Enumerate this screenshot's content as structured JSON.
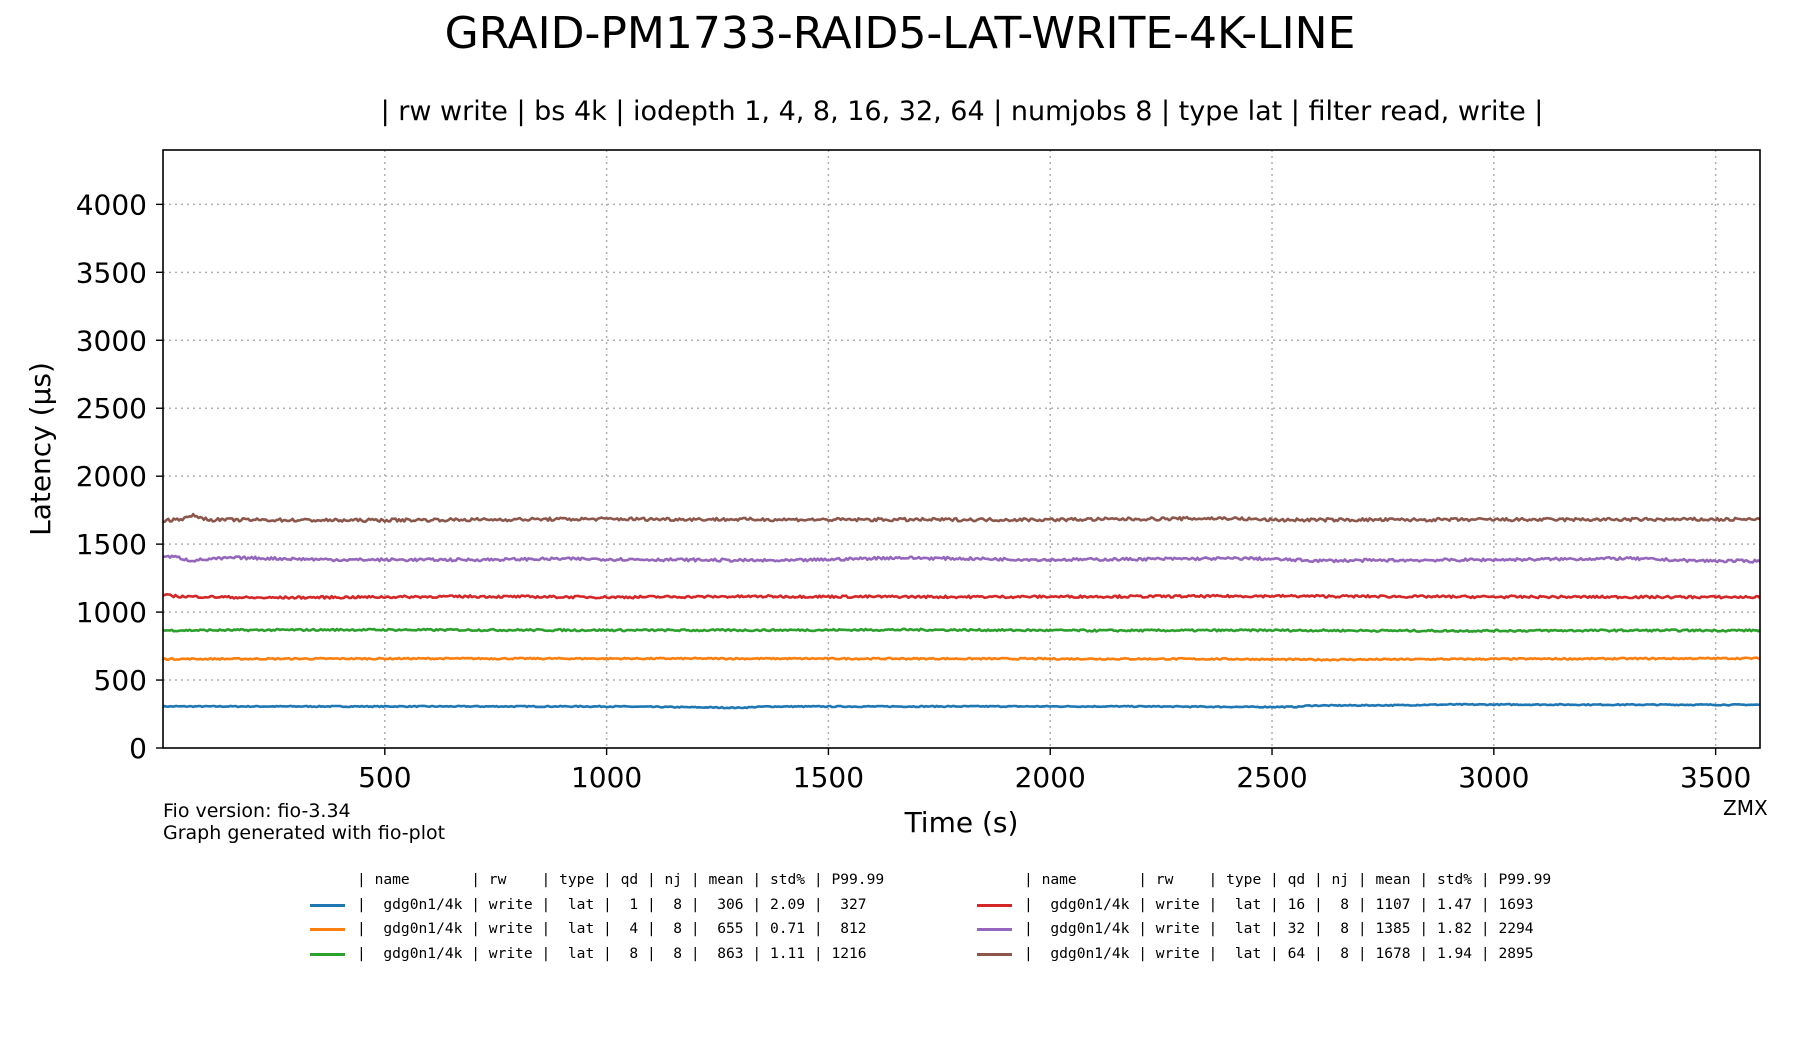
{
  "chart_data": {
    "type": "line",
    "title": "GRAID-PM1733-RAID5-LAT-WRITE-4K-LINE",
    "subtitle": "| rw write | bs 4k | iodepth 1, 4, 8, 16, 32, 64 | numjobs 8 | type lat | filter read, write |",
    "xlabel": "Time (s)",
    "ylabel": "Latency (µs)",
    "xlim": [
      0,
      3600
    ],
    "ylim": [
      0,
      4400
    ],
    "xticks": [
      500,
      1000,
      1500,
      2000,
      2500,
      3000,
      3500
    ],
    "yticks": [
      0,
      500,
      1000,
      1500,
      2000,
      2500,
      3000,
      3500,
      4000
    ],
    "grid": "dotted",
    "legend_position": "bottom",
    "series": [
      {
        "name": "gdg0n1/4k write lat qd 1",
        "color": "#1f77b4",
        "mean": 306,
        "points": [
          [
            0,
            306
          ],
          [
            300,
            306
          ],
          [
            600,
            306
          ],
          [
            1000,
            306
          ],
          [
            1240,
            298
          ],
          [
            1300,
            296
          ],
          [
            1360,
            305
          ],
          [
            1800,
            306
          ],
          [
            2200,
            306
          ],
          [
            2450,
            302
          ],
          [
            2560,
            303
          ],
          [
            2580,
            312
          ],
          [
            2800,
            315
          ],
          [
            2850,
            318
          ],
          [
            2900,
            320
          ],
          [
            3200,
            319
          ],
          [
            3600,
            318
          ]
        ]
      },
      {
        "name": "gdg0n1/4k write lat qd 4",
        "color": "#ff7f0e",
        "mean": 655,
        "points": [
          [
            0,
            655
          ],
          [
            600,
            658
          ],
          [
            1200,
            658
          ],
          [
            1800,
            657
          ],
          [
            2400,
            655
          ],
          [
            2600,
            650
          ],
          [
            3000,
            655
          ],
          [
            3600,
            660
          ]
        ]
      },
      {
        "name": "gdg0n1/4k write lat qd 8",
        "color": "#2ca02c",
        "mean": 863,
        "points": [
          [
            0,
            865
          ],
          [
            400,
            870
          ],
          [
            800,
            868
          ],
          [
            1200,
            866
          ],
          [
            1700,
            870
          ],
          [
            2100,
            864
          ],
          [
            2500,
            866
          ],
          [
            2900,
            862
          ],
          [
            3300,
            865
          ],
          [
            3600,
            865
          ]
        ]
      },
      {
        "name": "gdg0n1/4k write lat qd 16",
        "color": "#d62728",
        "mean": 1107,
        "points": [
          [
            0,
            1125
          ],
          [
            40,
            1115
          ],
          [
            150,
            1110
          ],
          [
            200,
            1105
          ],
          [
            690,
            1115
          ],
          [
            1000,
            1110
          ],
          [
            1350,
            1115
          ],
          [
            1800,
            1112
          ],
          [
            2200,
            1115
          ],
          [
            2500,
            1118
          ],
          [
            3000,
            1112
          ],
          [
            3600,
            1110
          ]
        ]
      },
      {
        "name": "gdg0n1/4k write lat qd 32",
        "color": "#9467bd",
        "mean": 1385,
        "points": [
          [
            0,
            1410
          ],
          [
            30,
            1405
          ],
          [
            60,
            1380
          ],
          [
            160,
            1400
          ],
          [
            400,
            1385
          ],
          [
            700,
            1385
          ],
          [
            900,
            1392
          ],
          [
            1400,
            1378
          ],
          [
            1650,
            1400
          ],
          [
            2000,
            1385
          ],
          [
            2300,
            1392
          ],
          [
            2450,
            1395
          ],
          [
            2600,
            1378
          ],
          [
            3000,
            1385
          ],
          [
            3300,
            1395
          ],
          [
            3450,
            1378
          ],
          [
            3600,
            1375
          ]
        ]
      },
      {
        "name": "gdg0n1/4k write lat qd 64",
        "color": "#8c564b",
        "mean": 1678,
        "points": [
          [
            0,
            1672
          ],
          [
            50,
            1690
          ],
          [
            70,
            1712
          ],
          [
            100,
            1680
          ],
          [
            400,
            1675
          ],
          [
            700,
            1680
          ],
          [
            1000,
            1685
          ],
          [
            1500,
            1680
          ],
          [
            2000,
            1680
          ],
          [
            2400,
            1690
          ],
          [
            2500,
            1678
          ],
          [
            3000,
            1680
          ],
          [
            3600,
            1682
          ]
        ]
      }
    ]
  },
  "footnotes": {
    "version": "Fio version: fio-3.34",
    "generator": "Graph generated with fio-plot",
    "corner": "ZMX"
  },
  "legend": {
    "header": "| name       | rw    | type | qd | nj | mean | std% | P99.99",
    "left": [
      {
        "color": "#1f77b4",
        "text": "|  gdg0n1/4k | write |  lat |  1 |  8 |  306 | 2.09 |  327"
      },
      {
        "color": "#ff7f0e",
        "text": "|  gdg0n1/4k | write |  lat |  4 |  8 |  655 | 0.71 |  812"
      },
      {
        "color": "#2ca02c",
        "text": "|  gdg0n1/4k | write |  lat |  8 |  8 |  863 | 1.11 | 1216"
      }
    ],
    "right": [
      {
        "color": "#d62728",
        "text": "|  gdg0n1/4k | write |  lat | 16 |  8 | 1107 | 1.47 | 1693"
      },
      {
        "color": "#9467bd",
        "text": "|  gdg0n1/4k | write |  lat | 32 |  8 | 1385 | 1.82 | 2294"
      },
      {
        "color": "#8c564b",
        "text": "|  gdg0n1/4k | write |  lat | 64 |  8 | 1678 | 1.94 | 2895"
      }
    ]
  }
}
